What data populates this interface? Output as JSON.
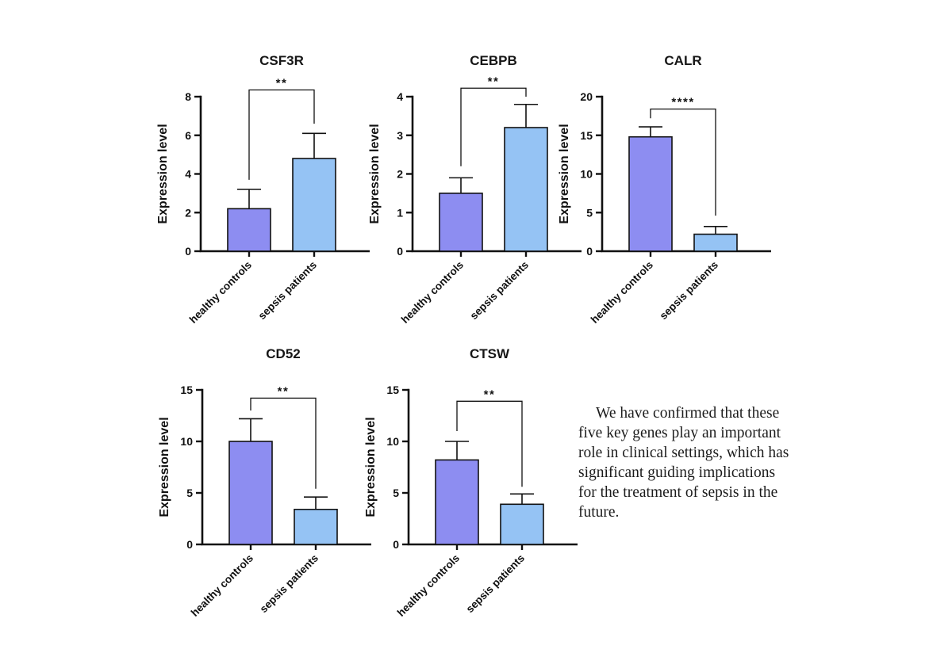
{
  "page": {
    "background": "#ffffff"
  },
  "colors": {
    "bar_healthy": "#8d8df1",
    "bar_sepsis": "#95c3f4",
    "axis": "#111111"
  },
  "chart_data": [
    {
      "type": "bar",
      "title": "CSF3R",
      "categories": [
        "healthy controls",
        "sepsis patients"
      ],
      "values": [
        2.2,
        4.8
      ],
      "error_tops": [
        3.2,
        6.1
      ],
      "significance": "**",
      "xlabel": "",
      "ylabel": "Expression level",
      "ylim": [
        0,
        8
      ],
      "yticks": [
        0,
        2,
        4,
        6,
        8
      ],
      "bracket": {
        "top": 8.35,
        "left_end": 3.7,
        "right_end": 6.6
      }
    },
    {
      "type": "bar",
      "title": "CEBPB",
      "categories": [
        "healthy controls",
        "sepsis patients"
      ],
      "values": [
        1.5,
        3.2
      ],
      "error_tops": [
        1.9,
        3.8
      ],
      "significance": "**",
      "xlabel": "",
      "ylabel": "Expression level",
      "ylim": [
        0,
        4
      ],
      "yticks": [
        0,
        1,
        2,
        3,
        4
      ],
      "bracket": {
        "top": 4.22,
        "left_end": 2.2,
        "right_end": 4.0
      }
    },
    {
      "type": "bar",
      "title": "CALR",
      "categories": [
        "healthy controls",
        "sepsis patients"
      ],
      "values": [
        14.8,
        2.2
      ],
      "error_tops": [
        16.1,
        3.2
      ],
      "significance": "****",
      "xlabel": "",
      "ylabel": "Expression level",
      "ylim": [
        0,
        20
      ],
      "yticks": [
        0,
        5,
        10,
        15,
        20
      ],
      "bracket": {
        "top": 18.4,
        "left_end": 17.2,
        "right_end": 4.6
      }
    },
    {
      "type": "bar",
      "title": "CD52",
      "categories": [
        "healthy controls",
        "sepsis patients"
      ],
      "values": [
        10.0,
        3.4
      ],
      "error_tops": [
        12.2,
        4.6
      ],
      "significance": "**",
      "xlabel": "",
      "ylabel": "Expression level",
      "ylim": [
        0,
        15
      ],
      "yticks": [
        0,
        5,
        10,
        15
      ],
      "bracket": {
        "top": 14.2,
        "left_end": 13.0,
        "right_end": 5.4
      }
    },
    {
      "type": "bar",
      "title": "CTSW",
      "categories": [
        "healthy controls",
        "sepsis patients"
      ],
      "values": [
        8.2,
        3.9
      ],
      "error_tops": [
        10.0,
        4.9
      ],
      "significance": "**",
      "xlabel": "",
      "ylabel": "Expression level",
      "ylim": [
        0,
        15
      ],
      "yticks": [
        0,
        5,
        10,
        15
      ],
      "bracket": {
        "top": 13.9,
        "left_end": 11.0,
        "right_end": 5.6
      }
    }
  ],
  "summary": {
    "lines": [
      "We have confirmed that these",
      "five key genes play an important",
      "role in clinical settings, which has",
      "significant guiding implications",
      "for the treatment of sepsis in the",
      "future."
    ]
  }
}
